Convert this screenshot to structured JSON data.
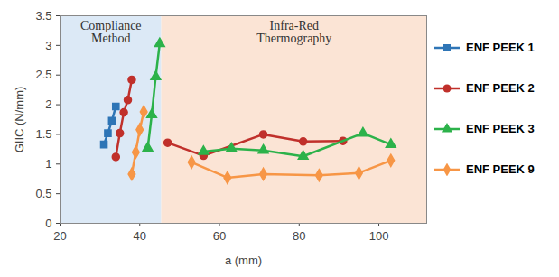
{
  "chart_data": {
    "type": "line",
    "x_label": "a (mm)",
    "y_label": "GIIC (N/mm)",
    "xlim": [
      20,
      112
    ],
    "xticks": [
      20,
      40,
      60,
      80,
      100
    ],
    "ylim": [
      0,
      3.5
    ],
    "yticks": [
      0,
      0.5,
      1,
      1.5,
      2,
      2.5,
      3,
      3.5
    ],
    "grid": false,
    "legend": "right",
    "annotations": [
      {
        "text": "Compliance Method",
        "x_range": [
          20,
          45.5
        ],
        "color": "#dce9f6"
      },
      {
        "text": "Infra-Red Thermography",
        "x_range": [
          45.5,
          112
        ],
        "color": "#fbe4d5"
      }
    ],
    "series": [
      {
        "name": "ENF PEEK 1",
        "color": "#2e75b6",
        "marker": "square",
        "x": [
          31,
          32,
          33,
          34
        ],
        "values": [
          1.33,
          1.52,
          1.73,
          1.97
        ]
      },
      {
        "name": "ENF PEEK 2",
        "color": "#c0302b",
        "marker": "circle",
        "x": [
          34,
          35,
          36,
          37,
          38,
          null,
          47,
          56,
          71,
          81,
          91
        ],
        "values": [
          1.12,
          1.52,
          1.87,
          2.08,
          2.42,
          null,
          1.36,
          1.14,
          1.5,
          1.38,
          1.39
        ]
      },
      {
        "name": "ENF PEEK 3",
        "color": "#2cb24a",
        "marker": "triangle",
        "x": [
          42,
          43,
          44,
          45,
          null,
          56,
          63,
          71,
          81,
          96,
          103
        ],
        "values": [
          1.27,
          1.83,
          2.47,
          3.03,
          null,
          1.21,
          1.26,
          1.23,
          1.13,
          1.52,
          1.33
        ]
      },
      {
        "name": "ENF PEEK 9",
        "color": "#f79646",
        "marker": "diamond",
        "x": [
          38,
          39,
          40,
          41,
          null,
          53,
          62,
          71,
          85,
          95,
          103
        ],
        "values": [
          0.83,
          1.2,
          1.58,
          1.88,
          null,
          1.03,
          0.77,
          0.83,
          0.81,
          0.85,
          1.06
        ]
      }
    ]
  }
}
